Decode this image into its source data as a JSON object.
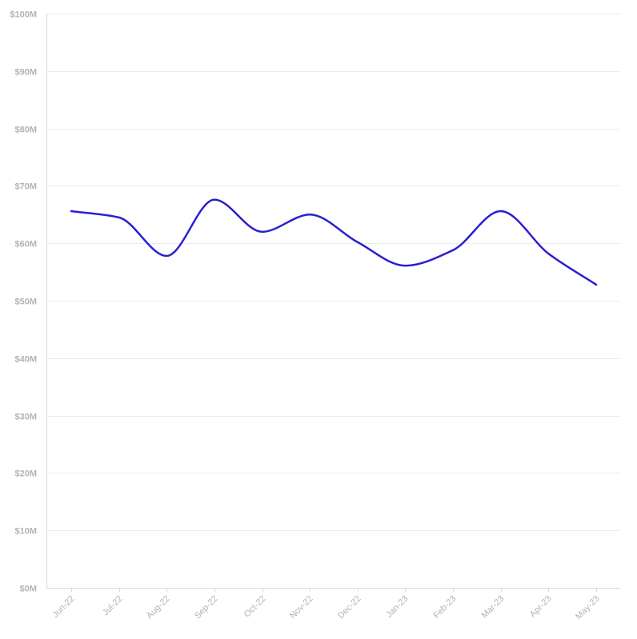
{
  "chart_data": {
    "type": "line",
    "title": "",
    "xlabel": "",
    "ylabel": "",
    "categories": [
      "Jun-22",
      "Jul-22",
      "Aug-22",
      "Sep-22",
      "Oct-22",
      "Nov-22",
      "Dec-22",
      "Jan-23",
      "Feb-23",
      "Mar-23",
      "Apr-23",
      "May-23"
    ],
    "series": [
      {
        "values": [
          65.6,
          64.5,
          57.8,
          67.6,
          62.0,
          65.0,
          60.2,
          56.1,
          58.8,
          65.6,
          58.2,
          52.8
        ],
        "color": "#2a1fd1"
      }
    ],
    "ylim": [
      0,
      100
    ],
    "y_ticks": [
      0,
      10,
      20,
      30,
      40,
      50,
      60,
      70,
      80,
      90,
      100
    ],
    "y_tick_labels": [
      "$0M",
      "$10M",
      "$20M",
      "$30M",
      "$40M",
      "$50M",
      "$60M",
      "$70M",
      "$80M",
      "$90M",
      "$100M"
    ],
    "grid": true,
    "legend": "none"
  }
}
